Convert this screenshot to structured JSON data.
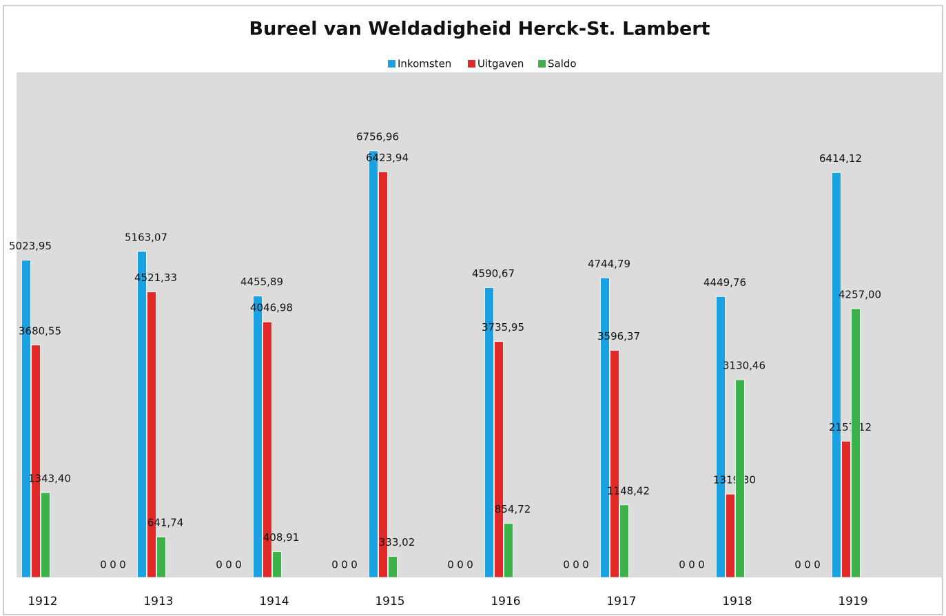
{
  "chart_data": {
    "type": "bar",
    "title": "Bureel van Weldadigheid Herck-St. Lambert",
    "categories": [
      "1912",
      null,
      "1913",
      null,
      "1914",
      null,
      "1915",
      null,
      "1916",
      null,
      "1917",
      null,
      "1918",
      null,
      "1919"
    ],
    "ylim": [
      0,
      8000
    ],
    "legend": "top",
    "series": [
      {
        "name": "Inkomsten",
        "color": "#1ba1e2",
        "values": [
          5023.95,
          0,
          5163.07,
          0,
          4455.89,
          0,
          6756.96,
          0,
          4590.67,
          0,
          4744.79,
          0,
          4449.76,
          0,
          6414.12
        ],
        "value_labels": [
          "5023,95",
          "0",
          "5163,07",
          "0",
          "4455,89",
          "0",
          "6756,96",
          "0",
          "4590,67",
          "0",
          "4744,79",
          "0",
          "4449,76",
          "0",
          "6414,12"
        ]
      },
      {
        "name": "Uitgaven",
        "color": "#e02a2a",
        "values": [
          3680.55,
          0,
          4521.33,
          0,
          4046.98,
          0,
          6423.94,
          0,
          3735.95,
          0,
          3596.37,
          0,
          1319.3,
          0,
          2157.12
        ],
        "value_labels": [
          "3680,55",
          "0",
          "4521,33",
          "0",
          "4046,98",
          "0",
          "6423,94",
          "0",
          "3735,95",
          "0",
          "3596,37",
          "0",
          "1319,30",
          "0",
          "2157,12"
        ]
      },
      {
        "name": "Saldo",
        "color": "#3cb34a",
        "values": [
          1343.4,
          0,
          641.74,
          0,
          408.91,
          0,
          333.02,
          0,
          854.72,
          0,
          1148.42,
          0,
          3130.46,
          0,
          4257.0
        ],
        "value_labels": [
          "1343,40",
          "0",
          "641,74",
          "0",
          "408,91",
          "0",
          "333,02",
          "0",
          "854,72",
          "0",
          "1148,42",
          "0",
          "3130,46",
          "0",
          "4257,00"
        ]
      }
    ]
  }
}
